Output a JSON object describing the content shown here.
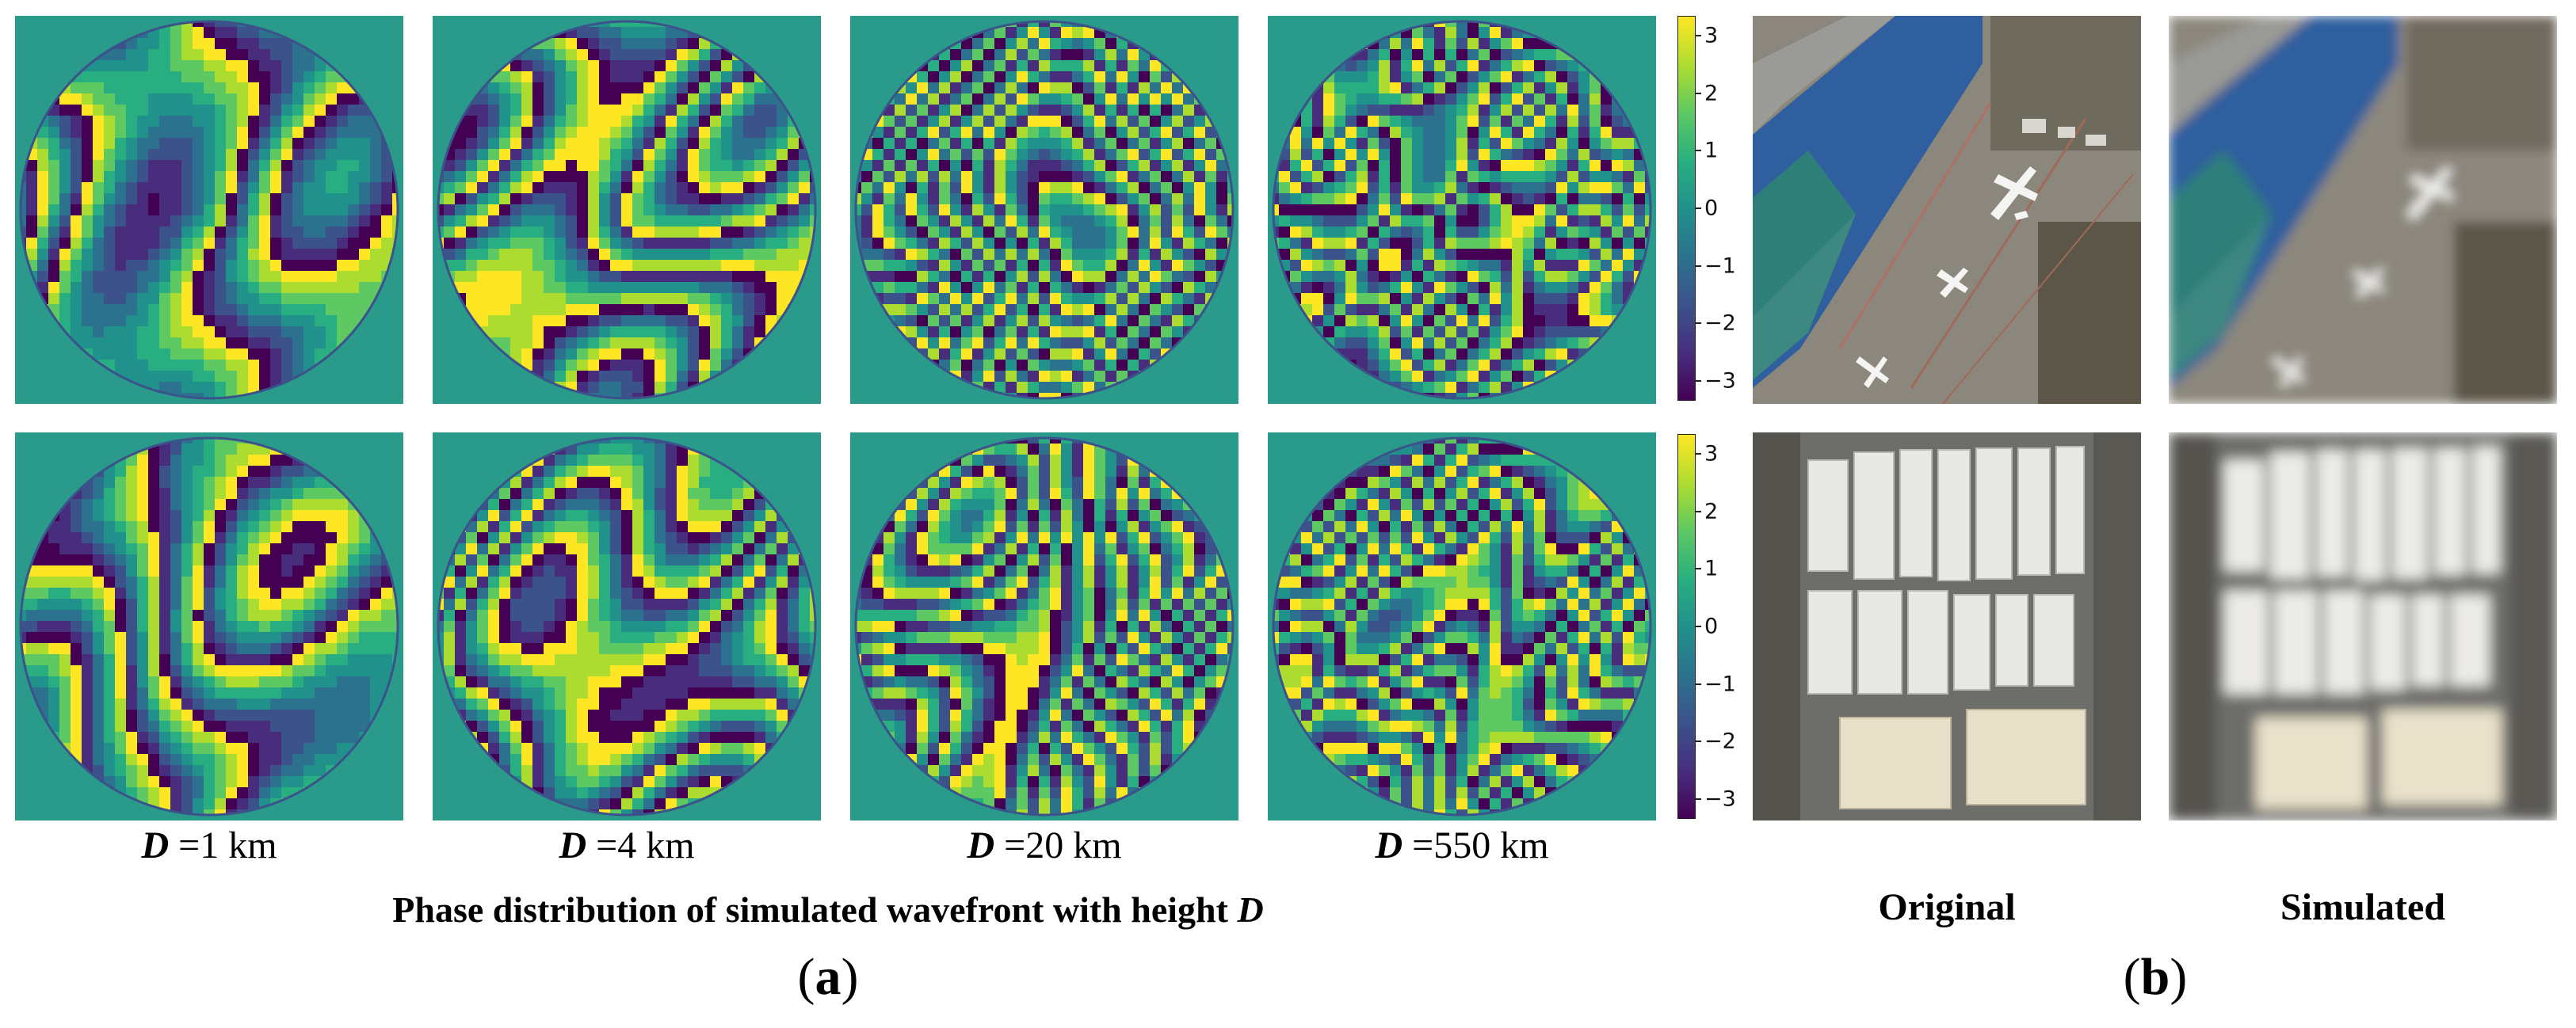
{
  "figure": {
    "left_panels": {
      "height_labels": [
        {
          "variable": "D",
          "text": " =1 km"
        },
        {
          "variable": "D",
          "text": " =4 km"
        },
        {
          "variable": "D",
          "text": " =20 km"
        },
        {
          "variable": "D",
          "text": " =550 km"
        }
      ],
      "caption_text": "Phase distribution of simulated wavefront with height ",
      "caption_variable": "D",
      "colorbar_ticks": [
        "3",
        "2",
        "1",
        "0",
        "−1",
        "−2",
        "−3"
      ],
      "colormap": "viridis",
      "label": {
        "open": "(",
        "letter": "a",
        "close": ")"
      }
    },
    "right_panels": {
      "column_headers": [
        "Original",
        "Simulated"
      ],
      "label": {
        "open": "(",
        "letter": "b",
        "close": ")"
      }
    }
  },
  "colors": {
    "viridis_dark": "#440154",
    "viridis_mid": "#21918c",
    "viridis_bright": "#fde725",
    "aerial_ground": "#8a857a",
    "aerial_roof_blue": "#2f5f9e",
    "aerial_roof_white": "#e8e8e4"
  }
}
